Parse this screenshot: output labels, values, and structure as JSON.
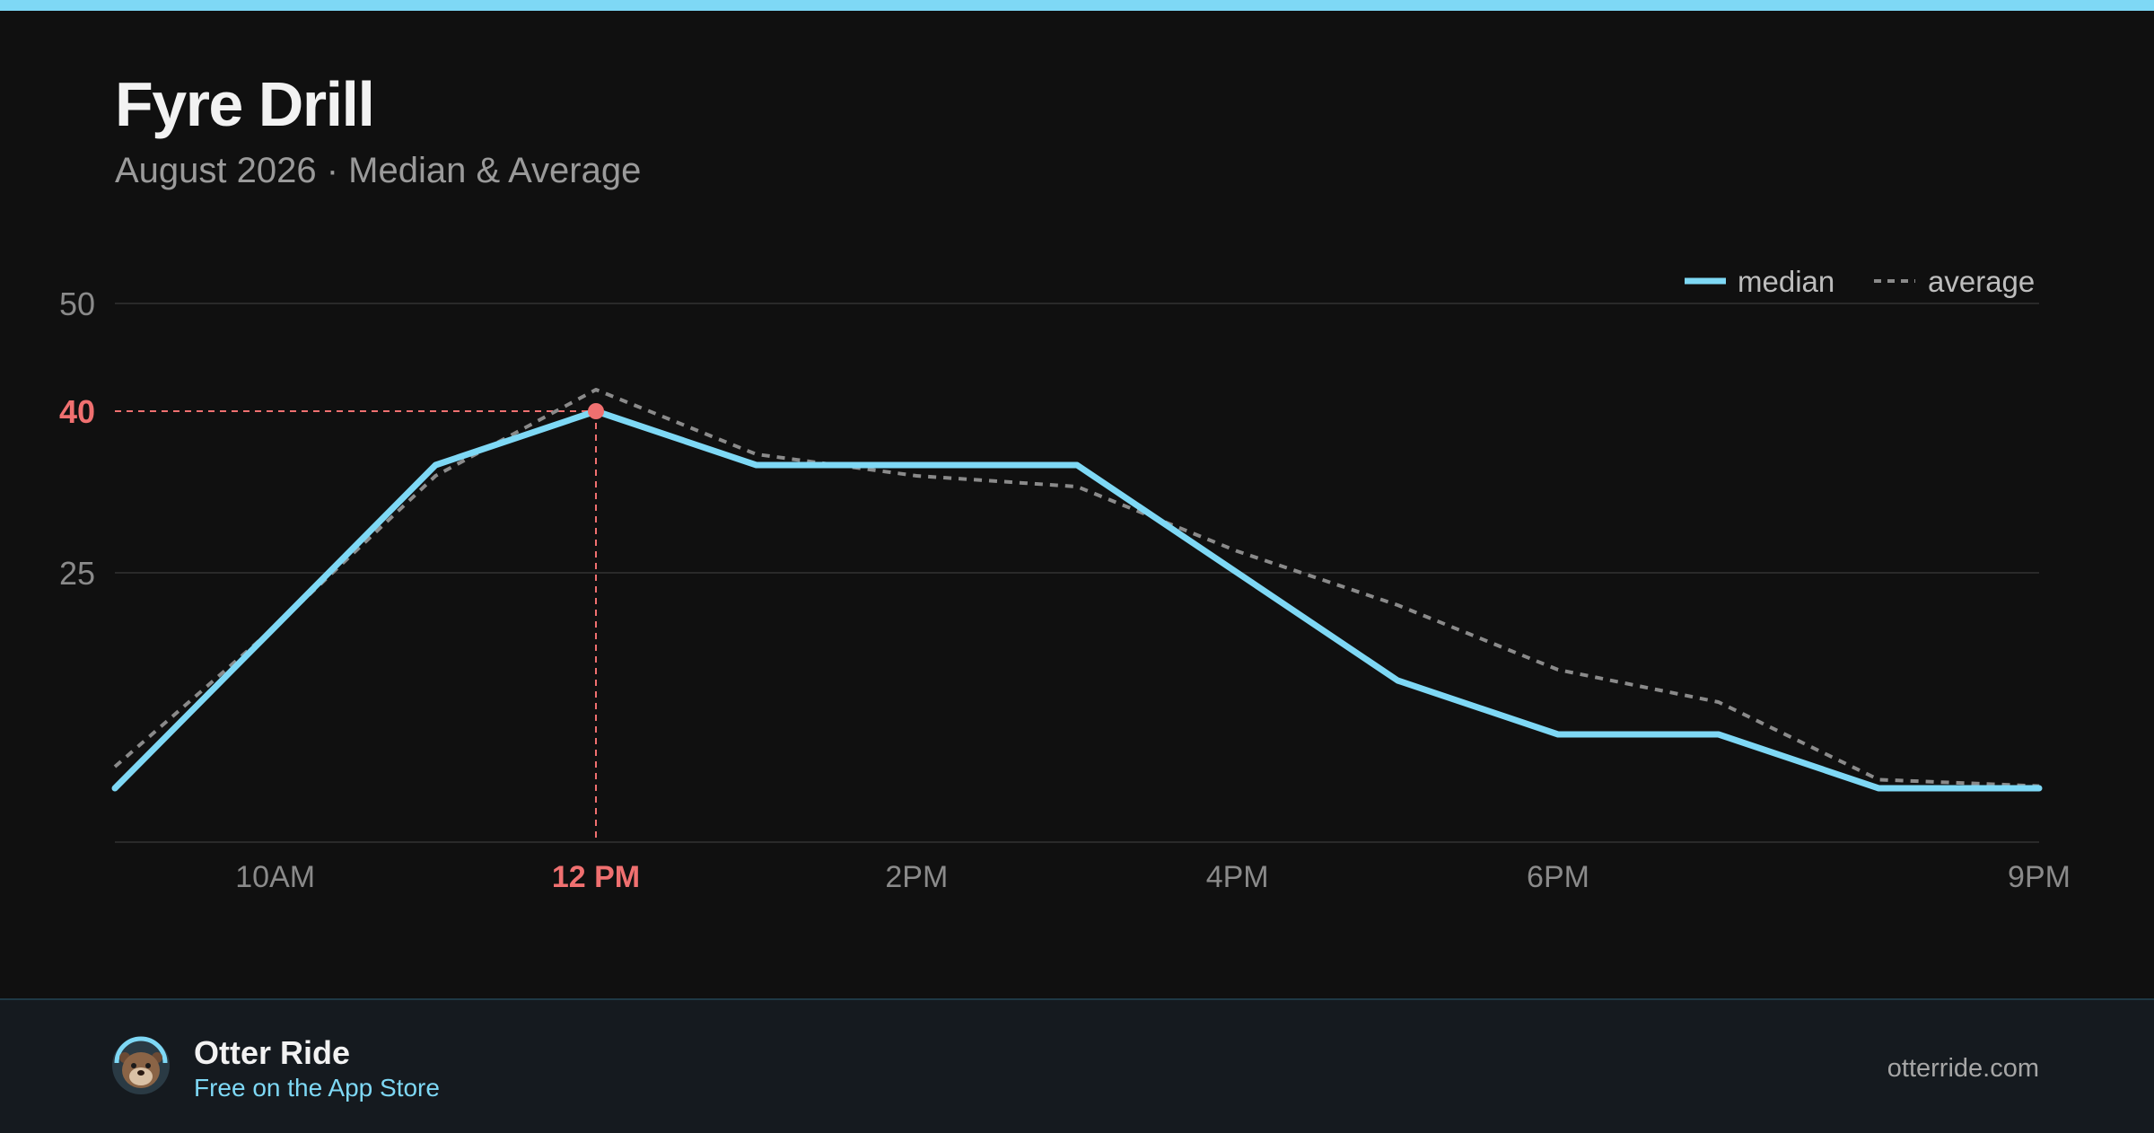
{
  "header": {
    "title": "Fyre Drill",
    "subtitle": "August 2026 · Median & Average"
  },
  "legend": {
    "median": "median",
    "average": "average"
  },
  "footer": {
    "app_name": "Otter Ride",
    "app_sub": "Free on the App Store",
    "site": "otterride.com"
  },
  "colors": {
    "accent": "#7ed8f5",
    "highlight": "#f07070",
    "average": "#8a8a8a",
    "background": "#101010",
    "footer_bg": "#151a1f"
  },
  "icons": {
    "logo": "otter-icon"
  },
  "chart_data": {
    "type": "line",
    "x": [
      "9AM",
      "10AM",
      "11AM",
      "12PM",
      "1PM",
      "2PM",
      "3PM",
      "4PM",
      "5PM",
      "6PM",
      "7PM",
      "8PM",
      "9PM"
    ],
    "x_tick_labels": [
      "10AM",
      "12 PM",
      "2PM",
      "4PM",
      "6PM",
      "9PM"
    ],
    "y_ticks": [
      50,
      40,
      25
    ],
    "ylim": [
      0,
      50
    ],
    "series": [
      {
        "name": "median",
        "values": [
          5,
          20,
          35,
          40,
          35,
          35,
          35,
          25,
          15,
          10,
          10,
          5,
          5
        ]
      },
      {
        "name": "average",
        "values": [
          7,
          20,
          34,
          42,
          36,
          34,
          33,
          27,
          22,
          16,
          13,
          5.8,
          5.2
        ]
      }
    ],
    "highlight": {
      "x": "12PM",
      "label": "12 PM",
      "value": 40,
      "value_label": "40"
    },
    "grid": true,
    "legend_position": "top-right"
  }
}
